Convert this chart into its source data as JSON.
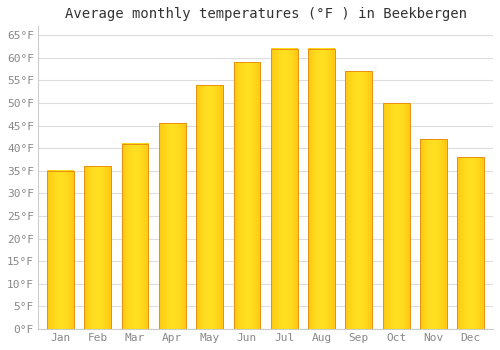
{
  "title": "Average monthly temperatures (°F ) in Beekbergen",
  "months": [
    "Jan",
    "Feb",
    "Mar",
    "Apr",
    "May",
    "Jun",
    "Jul",
    "Aug",
    "Sep",
    "Oct",
    "Nov",
    "Dec"
  ],
  "values": [
    35,
    36,
    41,
    45.5,
    54,
    59,
    62,
    62,
    57,
    50,
    42,
    38
  ],
  "bar_color_top": "#FFD060",
  "bar_color_bottom": "#FFA020",
  "bar_edge_color": "#E89010",
  "ylim": [
    0,
    67
  ],
  "yticks": [
    0,
    5,
    10,
    15,
    20,
    25,
    30,
    35,
    40,
    45,
    50,
    55,
    60,
    65
  ],
  "ytick_labels": [
    "0°F",
    "5°F",
    "10°F",
    "15°F",
    "20°F",
    "25°F",
    "30°F",
    "35°F",
    "40°F",
    "45°F",
    "50°F",
    "55°F",
    "60°F",
    "65°F"
  ],
  "background_color": "#FFFFFF",
  "plot_bg_color": "#FFFFFF",
  "grid_color": "#DDDDDD",
  "title_fontsize": 10,
  "tick_fontsize": 8,
  "tick_color": "#888888",
  "title_color": "#333333",
  "spine_color": "#CCCCCC",
  "bar_width": 0.72
}
